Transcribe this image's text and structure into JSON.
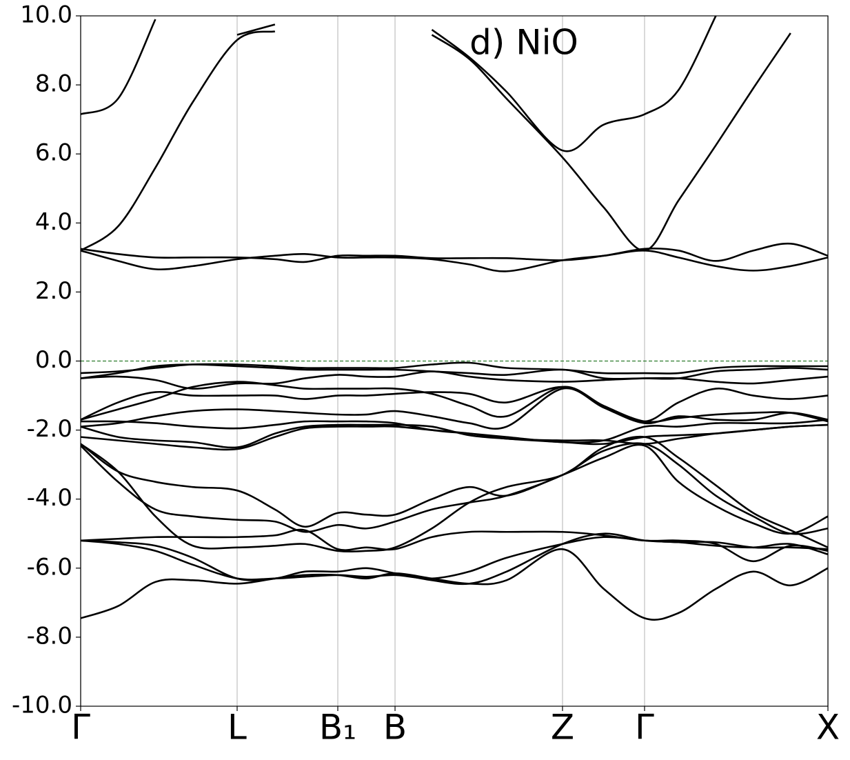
{
  "chart_data": {
    "type": "line",
    "annotation": "d) NiO",
    "x": [
      0,
      0.05,
      0.1,
      0.15,
      0.2094,
      0.26,
      0.3,
      0.3441,
      0.3824,
      0.4207,
      0.47,
      0.52,
      0.57,
      0.6448,
      0.7,
      0.7546,
      0.8,
      0.85,
      0.9,
      0.95,
      1
    ],
    "xlim": [
      0,
      1
    ],
    "xticks": [
      {
        "value": 0,
        "label": "Γ"
      },
      {
        "value": 0.2094,
        "label": "L"
      },
      {
        "value": 0.3441,
        "label": "B₁"
      },
      {
        "value": 0.4207,
        "label": "B"
      },
      {
        "value": 0.6448,
        "label": "Z"
      },
      {
        "value": 0.7546,
        "label": "Γ"
      },
      {
        "value": 1,
        "label": "X"
      }
    ],
    "ylim": [
      -10,
      10
    ],
    "yticks": [
      {
        "value": -10,
        "label": "-10.0"
      },
      {
        "value": -8,
        "label": "-8.0"
      },
      {
        "value": -6,
        "label": "-6.0"
      },
      {
        "value": -4,
        "label": "-4.0"
      },
      {
        "value": -2,
        "label": "-2.0"
      },
      {
        "value": 0,
        "label": "0.0"
      },
      {
        "value": 2,
        "label": "2.0"
      },
      {
        "value": 4,
        "label": "4.0"
      },
      {
        "value": 6,
        "label": "6.0"
      },
      {
        "value": 8,
        "label": "8.0"
      },
      {
        "value": 10,
        "label": "10.0"
      }
    ],
    "grid_x": true,
    "grid_color": "#cccccc",
    "reference_line": {
      "value": 0,
      "color": "#2a7a2a"
    },
    "series": [
      {
        "color": "#000000",
        "values": [
          7.15,
          7.6,
          9.9,
          null,
          null,
          null,
          null,
          null,
          null,
          null,
          null,
          null,
          null,
          null,
          null,
          null,
          null,
          null,
          null,
          null,
          null
        ]
      },
      {
        "color": "#000000",
        "values": [
          3.2,
          3.9,
          5.6,
          7.5,
          9.3,
          9.55,
          null,
          null,
          null,
          null,
          null,
          null,
          null,
          null,
          null,
          null,
          null,
          null,
          null,
          null,
          null
        ]
      },
      {
        "color": "#000000",
        "values": [
          null,
          null,
          null,
          null,
          9.45,
          9.75,
          null,
          null,
          null,
          null,
          null,
          null,
          null,
          null,
          null,
          null,
          null,
          null,
          null,
          null,
          null
        ]
      },
      {
        "color": "#000000",
        "values": [
          null,
          null,
          null,
          null,
          null,
          null,
          null,
          null,
          null,
          null,
          9.6,
          8.8,
          7.8,
          6.1,
          6.85,
          7.15,
          7.85,
          10.0,
          null,
          null,
          null
        ]
      },
      {
        "color": "#000000",
        "values": [
          null,
          null,
          null,
          null,
          null,
          null,
          null,
          null,
          null,
          null,
          9.45,
          8.75,
          7.6,
          5.9,
          4.45,
          3.2,
          4.65,
          6.25,
          7.9,
          9.5,
          null
        ]
      },
      {
        "color": "#000000",
        "values": [
          3.2,
          2.9,
          2.66,
          2.75,
          2.95,
          3.05,
          3.1,
          3.0,
          3.0,
          3.0,
          2.95,
          2.8,
          2.6,
          2.92,
          3.05,
          3.2,
          3.0,
          2.75,
          2.62,
          2.75,
          3.0
        ]
      },
      {
        "color": "#000000",
        "values": [
          3.25,
          3.1,
          3.0,
          3.0,
          3.0,
          2.95,
          2.87,
          3.05,
          3.05,
          3.05,
          2.98,
          2.98,
          2.98,
          2.92,
          3.05,
          3.25,
          3.2,
          2.9,
          3.2,
          3.4,
          3.05
        ]
      },
      {
        "color": "#000000",
        "values": [
          -0.35,
          -0.3,
          -0.2,
          -0.1,
          -0.1,
          -0.15,
          -0.2,
          -0.2,
          -0.2,
          -0.2,
          -0.1,
          -0.05,
          -0.2,
          -0.25,
          -0.35,
          -0.35,
          -0.35,
          -0.2,
          -0.15,
          -0.15,
          -0.15
        ]
      },
      {
        "color": "#000000",
        "values": [
          -0.5,
          -0.35,
          -0.15,
          -0.1,
          -0.15,
          -0.2,
          -0.25,
          -0.25,
          -0.25,
          -0.25,
          -0.3,
          -0.35,
          -0.4,
          -0.25,
          -0.5,
          -0.5,
          -0.5,
          -0.3,
          -0.25,
          -0.2,
          -0.25
        ]
      },
      {
        "color": "#000000",
        "values": [
          -0.5,
          -0.45,
          -0.55,
          -0.8,
          -0.65,
          -0.65,
          -0.5,
          -0.4,
          -0.45,
          -0.45,
          -0.3,
          -0.45,
          -0.55,
          -0.6,
          -0.55,
          -0.5,
          -0.5,
          -0.6,
          -0.65,
          -0.55,
          -0.45
        ]
      },
      {
        "color": "#000000",
        "values": [
          -1.7,
          -1.2,
          -0.9,
          -1.0,
          -1.0,
          -1.0,
          -1.1,
          -1.0,
          -1.0,
          -0.95,
          -0.9,
          -0.95,
          -1.2,
          -0.75,
          -1.3,
          -1.75,
          -1.2,
          -0.8,
          -1.0,
          -1.1,
          -1.0
        ]
      },
      {
        "color": "#000000",
        "values": [
          -1.7,
          -1.4,
          -1.1,
          -0.75,
          -0.6,
          -0.7,
          -0.8,
          -0.8,
          -0.8,
          -0.8,
          -0.95,
          -1.3,
          -1.6,
          -0.75,
          -1.3,
          -1.75,
          -1.65,
          -1.55,
          -1.5,
          -1.5,
          -1.75
        ]
      },
      {
        "color": "#000000",
        "values": [
          -1.9,
          -1.8,
          -1.6,
          -1.45,
          -1.4,
          -1.45,
          -1.5,
          -1.55,
          -1.55,
          -1.45,
          -1.6,
          -1.8,
          -1.9,
          -0.8,
          -1.35,
          -1.8,
          -1.6,
          -1.7,
          -1.7,
          -1.5,
          -1.7
        ]
      },
      {
        "color": "#000000",
        "values": [
          -1.75,
          -1.75,
          -1.8,
          -1.9,
          -1.95,
          -1.85,
          -1.75,
          -1.75,
          -1.75,
          -1.8,
          -2.0,
          -2.1,
          -2.2,
          -2.35,
          -2.3,
          -1.9,
          -1.9,
          -1.8,
          -1.8,
          -1.8,
          -1.7
        ]
      },
      {
        "color": "#000000",
        "values": [
          -1.9,
          -2.2,
          -2.3,
          -2.35,
          -2.5,
          -2.1,
          -1.9,
          -1.85,
          -1.85,
          -1.85,
          -1.9,
          -2.15,
          -2.25,
          -2.35,
          -2.4,
          -2.2,
          -2.15,
          -2.1,
          -2.0,
          -1.9,
          -1.85
        ]
      },
      {
        "color": "#000000",
        "values": [
          -2.2,
          -2.3,
          -2.4,
          -2.5,
          -2.55,
          -2.2,
          -1.95,
          -1.9,
          -1.9,
          -1.9,
          -2.0,
          -2.1,
          -2.25,
          -2.3,
          -2.3,
          -2.4,
          -2.25,
          -2.1,
          -2.0,
          -1.9,
          -1.85
        ]
      },
      {
        "color": "#000000",
        "values": [
          -2.4,
          -3.2,
          -3.5,
          -3.65,
          -3.75,
          -4.3,
          -4.8,
          -4.4,
          -4.45,
          -4.45,
          -4.0,
          -3.65,
          -3.9,
          -3.3,
          -2.8,
          -2.45,
          -3.5,
          -4.2,
          -4.7,
          -5.0,
          -4.5
        ]
      },
      {
        "color": "#000000",
        "values": [
          -2.45,
          -3.5,
          -4.3,
          -4.5,
          -4.6,
          -4.65,
          -4.95,
          -4.75,
          -4.85,
          -4.65,
          -4.3,
          -4.1,
          -3.9,
          -3.3,
          -2.6,
          -2.4,
          -3.0,
          -3.9,
          -4.5,
          -5.0,
          -4.85
        ]
      },
      {
        "color": "#000000",
        "values": [
          -2.4,
          -3.2,
          -4.5,
          -5.35,
          -5.4,
          -5.35,
          -5.3,
          -5.5,
          -5.5,
          -5.4,
          -4.85,
          -4.1,
          -3.65,
          -3.3,
          -2.5,
          -2.2,
          -2.8,
          -3.6,
          -4.4,
          -4.9,
          -5.4
        ]
      },
      {
        "color": "#000000",
        "values": [
          -5.2,
          -5.15,
          -5.1,
          -5.1,
          -5.1,
          -5.05,
          -4.9,
          -5.45,
          -5.4,
          -5.45,
          -5.1,
          -4.95,
          -4.95,
          -4.95,
          -5.05,
          -5.2,
          -5.2,
          -5.3,
          -5.8,
          -5.35,
          -5.5
        ]
      },
      {
        "color": "#000000",
        "values": [
          -5.2,
          -5.3,
          -5.5,
          -5.9,
          -6.3,
          -6.3,
          -6.25,
          -6.2,
          -6.25,
          -6.2,
          -6.3,
          -6.1,
          -5.7,
          -5.3,
          -5.1,
          -5.2,
          -5.25,
          -5.25,
          -5.4,
          -5.4,
          -5.45
        ]
      },
      {
        "color": "#000000",
        "values": [
          -5.2,
          -5.25,
          -5.35,
          -5.7,
          -6.3,
          -6.3,
          -6.1,
          -6.1,
          -6.0,
          -6.15,
          -6.35,
          -6.45,
          -6.1,
          -5.3,
          -5.0,
          -5.2,
          -5.25,
          -5.35,
          -5.4,
          -5.3,
          -5.6
        ]
      },
      {
        "color": "#000000",
        "values": [
          -7.45,
          -7.1,
          -6.4,
          -6.35,
          -6.45,
          -6.3,
          -6.2,
          -6.2,
          -6.3,
          -6.15,
          -6.3,
          -6.45,
          -6.35,
          -5.45,
          -6.6,
          -7.45,
          -7.3,
          -6.6,
          -6.1,
          -6.5,
          -6.0
        ]
      }
    ]
  }
}
